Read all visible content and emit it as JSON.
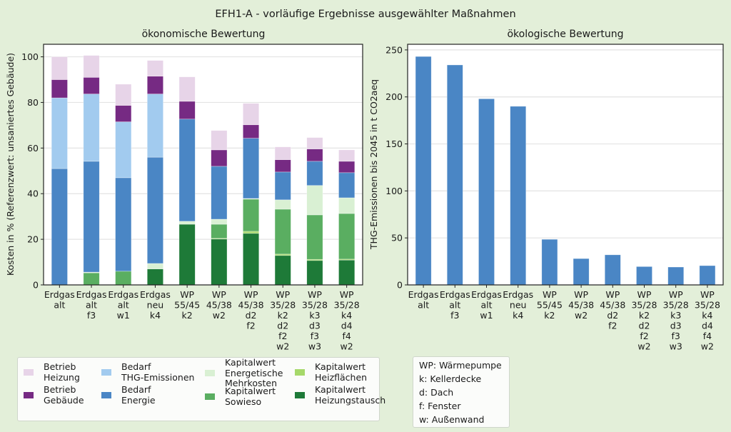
{
  "figure": {
    "title": "EFH1-A - vorläufige Ergebnisse ausgewählter Maßnahmen"
  },
  "chart_data": [
    {
      "type": "bar",
      "stacked": true,
      "title": "ökonomische Bewertung",
      "xlabel": "",
      "ylabel": "Kosten in % (Referenzwert: unsaniertes Gebäude)",
      "ylim": [
        0,
        105.5
      ],
      "yticks": [
        0,
        20,
        40,
        60,
        80,
        100
      ],
      "grid": "y",
      "categories": [
        "Erdgas\nalt",
        "Erdgas\nalt\nf3",
        "Erdgas\nalt\nw1",
        "Erdgas\nneu\nk4",
        "WP\n55/45\nk2",
        "WP\n45/38\nw2",
        "WP\n45/38\nd2\nf2",
        "WP\n35/28\nk2\nd2\nf2\nw2",
        "WP\n35/28\nk3\nd3\nf3\nw3",
        "WP\n35/28\nk4\nd4\nf4\nw2"
      ],
      "series": [
        {
          "name": "Kapitalwert Heizungstausch",
          "color": "#1e7a38",
          "values": [
            0,
            0,
            0,
            7.0,
            26.6,
            20.1,
            22.6,
            12.9,
            10.7,
            10.9
          ]
        },
        {
          "name": "Kapitalwert Heizflächen",
          "color": "#a6d96a",
          "values": [
            0,
            0,
            0,
            0,
            0,
            0.3,
            0.9,
            0.6,
            0.5,
            0.4
          ]
        },
        {
          "name": "Kapitalwert Sowieso",
          "color": "#5aae61",
          "values": [
            0,
            5.3,
            6.0,
            0,
            0,
            6.2,
            14.1,
            19.7,
            19.5,
            20.0
          ]
        },
        {
          "name": "Kapitalwert Energetische Mehrkosten",
          "color": "#d9f0d3",
          "values": [
            0,
            0.3,
            0,
            2.4,
            1.3,
            2.2,
            0.3,
            4.1,
            12.9,
            6.9
          ]
        },
        {
          "name": "Bedarf Energie",
          "color": "#4a86c5",
          "values": [
            51.0,
            48.6,
            41.0,
            46.6,
            44.8,
            23.2,
            26.4,
            12.2,
            10.6,
            11.0
          ]
        },
        {
          "name": "Bedarf THG-Emissionen",
          "color": "#a2cbef",
          "values": [
            31.0,
            29.5,
            24.5,
            27.7,
            0,
            0,
            0,
            0,
            0,
            0
          ]
        },
        {
          "name": "Betrieb Gebäude",
          "color": "#762a83",
          "values": [
            8.0,
            7.3,
            7.2,
            7.8,
            7.8,
            7.2,
            5.9,
            5.4,
            5.4,
            5.0
          ]
        },
        {
          "name": "Betrieb Heizung",
          "color": "#e7d4e8",
          "values": [
            10.0,
            9.6,
            9.3,
            6.9,
            10.7,
            8.5,
            9.4,
            5.6,
            5.0,
            5.0
          ]
        }
      ]
    },
    {
      "type": "bar",
      "stacked": false,
      "title": "ökologische Bewertung",
      "xlabel": "",
      "ylabel": "THG-Emissionen bis 2045 in t CO2aeq",
      "ylim": [
        0,
        256
      ],
      "yticks": [
        0,
        50,
        100,
        150,
        200,
        250
      ],
      "grid": "y",
      "categories": [
        "Erdgas\nalt",
        "Erdgas\nalt\nf3",
        "Erdgas\nalt\nw1",
        "Erdgas\nneu\nk4",
        "WP\n55/45\nk2",
        "WP\n45/38\nw2",
        "WP\n45/38\nd2\nf2",
        "WP\n35/28\nk2\nd2\nf2\nw2",
        "WP\n35/28\nk3\nd3\nf3\nw3",
        "WP\n35/28\nk4\nd4\nf4\nw2"
      ],
      "series": [
        {
          "name": "THG-Emissionen",
          "color": "#4a86c5",
          "values": [
            243,
            234,
            198,
            190,
            48.5,
            28,
            32,
            19.5,
            19,
            20.5
          ]
        }
      ]
    }
  ],
  "legend": {
    "placement": "bottom-left",
    "items": [
      {
        "label": "Betrieb\nHeizung",
        "color": "#e7d4e8"
      },
      {
        "label": "Betrieb\nGebäude",
        "color": "#762a83"
      },
      {
        "label": "Bedarf\nTHG-Emissionen",
        "color": "#a2cbef"
      },
      {
        "label": "Bedarf\nEnergie",
        "color": "#4a86c5"
      },
      {
        "label": "Kapitalwert\nEnergetische\nMehrkosten",
        "color": "#d9f0d3"
      },
      {
        "label": "Kapitalwert\nSowieso",
        "color": "#5aae61"
      },
      {
        "label": "Kapitalwert\nHeizflächen",
        "color": "#a6d96a"
      },
      {
        "label": "Kapitalwert\nHeizungstausch",
        "color": "#1e7a38"
      }
    ]
  },
  "abbreviations": {
    "placement": "bottom-center",
    "lines": [
      "WP: Wärmepumpe",
      "k: Kellerdecke",
      "d: Dach",
      "f: Fenster",
      "w: Außenwand"
    ]
  }
}
